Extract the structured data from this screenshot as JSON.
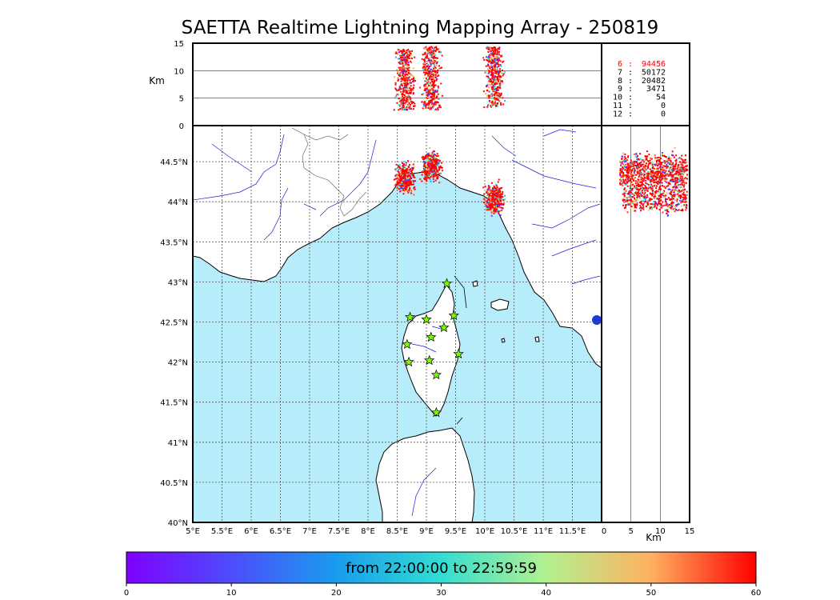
{
  "title": "SAETTA Realtime Lightning Mapping Array - 250819",
  "colors": {
    "sea": "#b7edfb",
    "land": "#ffffff",
    "river": "#1f1fd6",
    "coast": "#000000",
    "station_fill": "#7cfc00",
    "grid": "#555555"
  },
  "map": {
    "lon_labels": [
      "5°E",
      "5.5°E",
      "6°E",
      "6.5°E",
      "7°E",
      "7.5°E",
      "8°E",
      "8.5°E",
      "9°E",
      "9.5°E",
      "10°E",
      "10.5°E",
      "11°E",
      "11.5°E"
    ],
    "lat_labels": [
      "40°N",
      "40.5°N",
      "41°N",
      "41.5°N",
      "42°N",
      "42.5°N",
      "43°N",
      "43.5°N",
      "44°N",
      "44.5°N"
    ],
    "lon_range": [
      5.0,
      12.0
    ],
    "lat_range": [
      40.0,
      44.95
    ],
    "stations": [
      {
        "lon": 9.35,
        "lat": 42.98
      },
      {
        "lon": 8.72,
        "lat": 42.56
      },
      {
        "lon": 9.0,
        "lat": 42.53
      },
      {
        "lon": 9.47,
        "lat": 42.58
      },
      {
        "lon": 9.3,
        "lat": 42.43
      },
      {
        "lon": 9.08,
        "lat": 42.31
      },
      {
        "lon": 8.67,
        "lat": 42.22
      },
      {
        "lon": 9.55,
        "lat": 42.1
      },
      {
        "lon": 8.7,
        "lat": 42.0
      },
      {
        "lon": 9.05,
        "lat": 42.02
      },
      {
        "lon": 9.17,
        "lat": 41.84
      },
      {
        "lon": 9.17,
        "lat": 41.37
      }
    ]
  },
  "altitude_panel": {
    "ylabel": "Km",
    "ticks": [
      "0",
      "5",
      "10",
      "15"
    ]
  },
  "side_panel": {
    "xlabel": "Km",
    "ticks": [
      "0",
      "5",
      "10",
      "15"
    ]
  },
  "stats": [
    {
      "stations": "6",
      "count": "94456",
      "color": "#ff0000"
    },
    {
      "stations": "7",
      "count": "50172",
      "color": "#000000"
    },
    {
      "stations": "8",
      "count": "20482",
      "color": "#000000"
    },
    {
      "stations": "9",
      "count": "3471",
      "color": "#000000"
    },
    {
      "stations": "10",
      "count": "54",
      "color": "#000000"
    },
    {
      "stations": "11",
      "count": "0",
      "color": "#000000"
    },
    {
      "stations": "12",
      "count": "0",
      "color": "#000000"
    }
  ],
  "colorbar": {
    "label": "from 22:00:00 to 22:59:59",
    "ticks": [
      "0",
      "10",
      "20",
      "30",
      "40",
      "50",
      "60"
    ]
  },
  "storm_cells": [
    {
      "lon": 8.62,
      "lat": 44.3,
      "alt_min": 3,
      "alt_max": 14
    },
    {
      "lon": 9.07,
      "lat": 44.45,
      "alt_min": 3,
      "alt_max": 14.5
    },
    {
      "lon": 10.15,
      "lat": 44.05,
      "alt_min": 3.5,
      "alt_max": 14.5
    }
  ]
}
